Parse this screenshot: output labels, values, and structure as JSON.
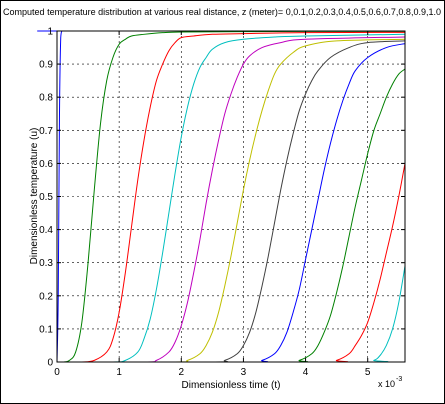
{
  "chart_data": {
    "type": "line",
    "title": "Computed temperature distribution at various real distance, z (meter)= 0,0.1,0.2,0.3,0.4,0.5,0.6,0.7,0.8,0.9,1.0",
    "xlabel": "Dimensionless time (t)",
    "ylabel": "Dimensionless temperature (u)",
    "x_multiplier": "x 10",
    "x_multiplier_exponent": "-3",
    "xlim": [
      0,
      0.0056
    ],
    "ylim": [
      0,
      1
    ],
    "xticks": [
      0,
      0.001,
      0.002,
      0.003,
      0.004,
      0.005
    ],
    "xtick_labels": [
      "0",
      "1",
      "2",
      "3",
      "4",
      "5"
    ],
    "yticks": [
      0,
      0.1,
      0.2,
      0.3,
      0.4,
      0.5,
      0.6,
      0.7,
      0.8,
      0.9,
      1
    ],
    "ytick_labels": [
      "0",
      "0.1",
      "0.2",
      "0.3",
      "0.4",
      "0.5",
      "0.6",
      "0.7",
      "0.8",
      "0.9",
      "1"
    ],
    "grid": true,
    "series": [
      {
        "color": "#0000ff",
        "x": [
          0,
          2e-05,
          4e-05,
          6e-05,
          8e-05,
          0.0001,
          0.0056
        ],
        "y": [
          0,
          0.2,
          0.75,
          0.98,
          1,
          1,
          1
        ]
      },
      {
        "color": "#008000",
        "x": [
          0,
          0.0001,
          0.0002,
          0.0003,
          0.0004,
          0.0005,
          0.0006,
          0.0007,
          0.0008,
          0.0009,
          0.001,
          0.0011,
          0.0012,
          0.0014,
          0.0017,
          0.002,
          0.003,
          0.004,
          0.005,
          0.0056
        ],
        "y": [
          0,
          0,
          0.005,
          0.03,
          0.12,
          0.3,
          0.52,
          0.72,
          0.85,
          0.92,
          0.96,
          0.975,
          0.985,
          0.99,
          0.995,
          0.997,
          0.998,
          0.999,
          0.999,
          0.999
        ]
      },
      {
        "color": "#ff0000",
        "x": [
          0,
          0.0004,
          0.0006,
          0.0008,
          0.0009,
          0.001,
          0.0011,
          0.0012,
          0.0013,
          0.0014,
          0.0015,
          0.0016,
          0.0017,
          0.0018,
          0.0019,
          0.002,
          0.0022,
          0.0025,
          0.003,
          0.004,
          0.0056
        ],
        "y": [
          0,
          0,
          0.005,
          0.03,
          0.07,
          0.15,
          0.27,
          0.41,
          0.55,
          0.67,
          0.77,
          0.85,
          0.9,
          0.94,
          0.965,
          0.98,
          0.985,
          0.99,
          0.992,
          0.995,
          0.996
        ]
      },
      {
        "color": "#00bfbf",
        "x": [
          0,
          0.0009,
          0.0011,
          0.0013,
          0.0014,
          0.0015,
          0.0016,
          0.0017,
          0.0018,
          0.0019,
          0.002,
          0.0021,
          0.0022,
          0.0023,
          0.0024,
          0.0025,
          0.0027,
          0.003,
          0.0035,
          0.004,
          0.0056
        ],
        "y": [
          0,
          0,
          0.005,
          0.03,
          0.07,
          0.13,
          0.22,
          0.33,
          0.45,
          0.57,
          0.68,
          0.77,
          0.84,
          0.89,
          0.92,
          0.945,
          0.965,
          0.975,
          0.982,
          0.985,
          0.99
        ]
      },
      {
        "color": "#bf00bf",
        "x": [
          0,
          0.0014,
          0.0016,
          0.0018,
          0.0019,
          0.002,
          0.0021,
          0.0022,
          0.0023,
          0.0024,
          0.0025,
          0.0026,
          0.0027,
          0.0028,
          0.0029,
          0.003,
          0.0031,
          0.0033,
          0.0036,
          0.004,
          0.0056
        ],
        "y": [
          0,
          0,
          0.005,
          0.03,
          0.06,
          0.11,
          0.18,
          0.27,
          0.37,
          0.48,
          0.58,
          0.67,
          0.75,
          0.81,
          0.86,
          0.9,
          0.925,
          0.95,
          0.965,
          0.975,
          0.982
        ]
      },
      {
        "color": "#bfbf00",
        "x": [
          0,
          0.0019,
          0.0021,
          0.0023,
          0.0024,
          0.0025,
          0.0026,
          0.0027,
          0.0028,
          0.0029,
          0.003,
          0.0031,
          0.0032,
          0.0033,
          0.0034,
          0.0035,
          0.0036,
          0.0038,
          0.004,
          0.0045,
          0.0056
        ],
        "y": [
          0,
          0,
          0.005,
          0.025,
          0.05,
          0.09,
          0.15,
          0.23,
          0.32,
          0.42,
          0.52,
          0.61,
          0.69,
          0.76,
          0.82,
          0.87,
          0.9,
          0.935,
          0.955,
          0.97,
          0.975
        ]
      },
      {
        "color": "#404040",
        "x": [
          0,
          0.0025,
          0.0027,
          0.0029,
          0.003,
          0.0031,
          0.0032,
          0.0033,
          0.0034,
          0.0035,
          0.0036,
          0.0037,
          0.0038,
          0.0039,
          0.004,
          0.0041,
          0.0042,
          0.0044,
          0.0047,
          0.005,
          0.0056
        ],
        "y": [
          0,
          0,
          0.005,
          0.025,
          0.05,
          0.09,
          0.15,
          0.23,
          0.32,
          0.42,
          0.52,
          0.61,
          0.69,
          0.76,
          0.81,
          0.85,
          0.88,
          0.92,
          0.95,
          0.965,
          0.97
        ]
      },
      {
        "color": "#0000ff",
        "x": [
          0,
          0.0031,
          0.0033,
          0.0035,
          0.0036,
          0.0037,
          0.0038,
          0.0039,
          0.004,
          0.0041,
          0.0042,
          0.0043,
          0.0044,
          0.0045,
          0.0046,
          0.0047,
          0.0048,
          0.005,
          0.0053,
          0.0056
        ],
        "y": [
          0,
          0,
          0.005,
          0.025,
          0.05,
          0.09,
          0.15,
          0.22,
          0.31,
          0.4,
          0.49,
          0.58,
          0.66,
          0.73,
          0.79,
          0.84,
          0.88,
          0.92,
          0.95,
          0.962
        ]
      },
      {
        "color": "#008000",
        "x": [
          0,
          0.0037,
          0.0039,
          0.0041,
          0.0042,
          0.0043,
          0.0044,
          0.0045,
          0.0046,
          0.0047,
          0.0048,
          0.0049,
          0.005,
          0.0051,
          0.0052,
          0.0053,
          0.0054,
          0.0055,
          0.0056
        ],
        "y": [
          0,
          0,
          0.005,
          0.025,
          0.05,
          0.09,
          0.14,
          0.21,
          0.29,
          0.38,
          0.47,
          0.55,
          0.63,
          0.7,
          0.75,
          0.8,
          0.84,
          0.87,
          0.885
        ]
      },
      {
        "color": "#ff0000",
        "x": [
          0,
          0.0043,
          0.0045,
          0.0047,
          0.0048,
          0.0049,
          0.005,
          0.0051,
          0.0052,
          0.0053,
          0.0054,
          0.0055,
          0.0056
        ],
        "y": [
          0,
          0,
          0.005,
          0.025,
          0.05,
          0.08,
          0.12,
          0.18,
          0.25,
          0.33,
          0.41,
          0.5,
          0.6
        ]
      },
      {
        "color": "#00bfbf",
        "x": [
          0,
          0.0049,
          0.0051,
          0.0052,
          0.0053,
          0.0054,
          0.0055,
          0.0056
        ],
        "y": [
          0,
          0,
          0.005,
          0.02,
          0.05,
          0.1,
          0.18,
          0.29
        ]
      }
    ]
  }
}
